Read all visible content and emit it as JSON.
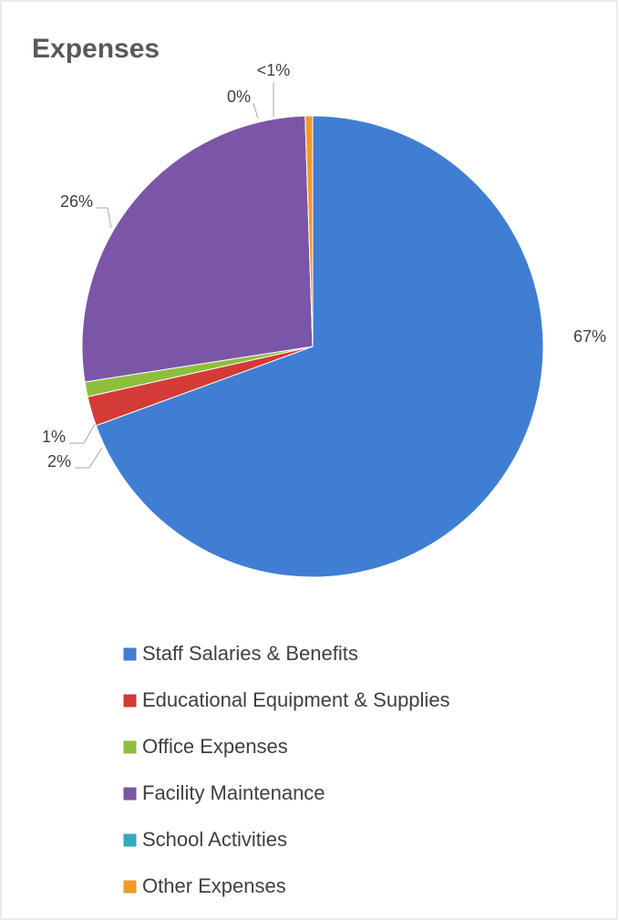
{
  "chart_data": {
    "type": "pie",
    "title": "Expenses",
    "categories": [
      "Staff Salaries & Benefits",
      "Educational Equipment & Supplies",
      "Office Expenses",
      "Facility Maintenance",
      "School Activities",
      "Other Expenses"
    ],
    "values": [
      67,
      2,
      1,
      26,
      0,
      0.5
    ],
    "value_labels": [
      "67%",
      "2%",
      "1%",
      "26%",
      "0%",
      "<1%"
    ],
    "colors": [
      "#3f7ed2",
      "#d43a36",
      "#8dbf3d",
      "#7b55a7",
      "#33a8c0",
      "#f29a24"
    ],
    "legend": "bottom"
  }
}
